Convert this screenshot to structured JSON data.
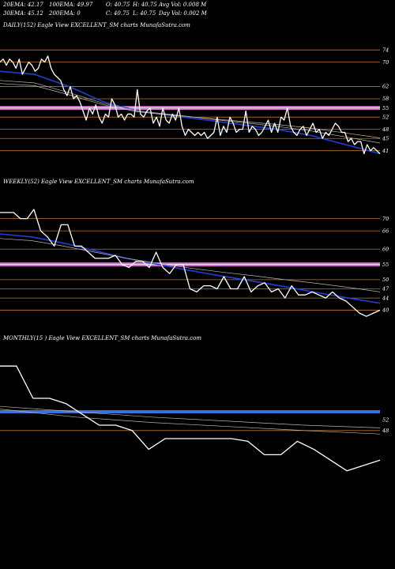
{
  "header": {
    "row1": [
      "20EMA: 42.17",
      "100EMA: 49.97",
      "O: 40.75",
      "H: 40.75",
      "Avg Vol: 0.008  M"
    ],
    "row2": [
      "30EMA: 45.12",
      "200EMA: 0",
      "C: 40.75",
      "L: 40.75",
      "Day Vol: 0.002  M"
    ]
  },
  "colors": {
    "background": "#000000",
    "price": "#ffffff",
    "ema_fast": "#1f3fd6",
    "ema_slow": "#bdb6a8",
    "level_line": "#b87333",
    "pink_band": "#d070d0",
    "blue_band": "#3a6fe0"
  },
  "chart_data": [
    {
      "type": "line",
      "title": "DAILY(152) Eagle  View  EXCELLENT_SM charts MunafaSutra.com",
      "ylim": [
        36,
        80
      ],
      "y_ticks": [
        74,
        70,
        62,
        58,
        55,
        52,
        48,
        45,
        41
      ],
      "level_lines": [
        74,
        70,
        62,
        58,
        52,
        48,
        45,
        41
      ],
      "pink_band": 55,
      "series": [
        {
          "role": "price",
          "values": [
            70,
            71,
            69,
            71,
            70,
            68,
            71,
            66,
            68,
            70,
            69,
            67,
            68,
            71,
            70,
            72,
            68,
            66,
            65,
            64,
            61,
            59,
            62,
            58,
            59,
            57,
            54,
            51,
            55,
            53,
            56,
            52,
            50,
            53,
            52,
            58,
            56,
            52,
            53,
            51,
            53,
            53,
            52,
            61,
            53,
            52,
            54,
            55,
            50,
            52,
            49,
            55,
            51,
            50,
            53,
            51,
            55,
            49,
            46,
            48,
            47,
            46,
            47,
            46,
            47,
            45,
            46,
            47,
            52,
            46,
            49,
            47,
            52,
            50,
            47,
            48,
            48,
            54,
            47,
            49,
            48,
            46,
            47,
            49,
            51,
            47,
            50,
            47,
            52,
            51,
            55,
            49,
            47,
            46,
            48,
            49,
            46,
            48,
            50,
            47,
            48,
            45,
            47,
            46,
            48,
            50,
            49,
            47,
            47,
            44,
            45,
            43,
            44,
            44,
            40,
            43,
            41,
            42,
            41,
            40
          ]
        },
        {
          "role": "ema_fast",
          "values": [
            67.0,
            66.0,
            62.0,
            57.0,
            54.0,
            52.5,
            51.0,
            49.5,
            48.0,
            46.0,
            43.0,
            40.0
          ]
        },
        {
          "role": "ema_slow",
          "values": [
            64.0,
            63.2,
            60.0,
            56.5,
            54.0,
            52.8,
            51.5,
            50.2,
            49.0,
            47.5,
            45.5,
            43.5
          ]
        },
        {
          "role": "ema_slow",
          "values": [
            63.0,
            62.3,
            59.3,
            56.0,
            53.7,
            52.6,
            51.6,
            50.6,
            49.6,
            48.4,
            46.8,
            45.2
          ]
        }
      ]
    },
    {
      "type": "line",
      "title": "WEEKLY(52) Eagle  View  EXCELLENT_SM charts MunafaSutra.com",
      "ylim": [
        36,
        80
      ],
      "y_ticks": [
        70,
        66,
        60,
        55,
        50,
        47,
        44,
        40
      ],
      "level_lines": [
        70,
        66,
        60,
        50,
        47,
        44,
        40
      ],
      "pink_band": 55,
      "series": [
        {
          "role": "price",
          "values": [
            72,
            72,
            72,
            70,
            70,
            73,
            66,
            64,
            61,
            68,
            68,
            61,
            61,
            59,
            57,
            57,
            57,
            58,
            55,
            54,
            56,
            56,
            54,
            59,
            54,
            52,
            55,
            55,
            47,
            46,
            48,
            48,
            47,
            51,
            47,
            47,
            51,
            46,
            48,
            49,
            46,
            47,
            44,
            48,
            45,
            45,
            46,
            45,
            44,
            46,
            44,
            43,
            41,
            39,
            38,
            39,
            40
          ]
        },
        {
          "role": "ema_fast",
          "values": [
            65.0,
            64.0,
            62.0,
            59.5,
            57.0,
            55.0,
            53.0,
            51.2,
            49.5,
            47.7,
            45.8,
            44.0,
            42.3
          ]
        },
        {
          "role": "ema_slow",
          "values": [
            63.5,
            62.8,
            61.0,
            59.0,
            57.0,
            55.3,
            53.8,
            52.5,
            51.3,
            50.0,
            48.8,
            47.5,
            46.0
          ]
        }
      ]
    },
    {
      "type": "line",
      "title": "MONTHLY(15                          ) Eagle  View  EXCELLENT_SM charts MunafaSutra.com",
      "ylim": [
        30,
        80
      ],
      "y_ticks": [
        52,
        48
      ],
      "level_lines": [
        48
      ],
      "blue_band": 55,
      "series": [
        {
          "role": "price",
          "values": [
            72,
            72,
            60,
            60,
            58,
            54,
            50,
            50,
            48,
            41,
            45,
            45,
            45,
            45,
            45,
            44,
            39,
            39,
            44,
            41,
            37,
            33,
            35,
            37
          ]
        },
        {
          "role": "ema_slow",
          "values": [
            56.0,
            53.0,
            51.0,
            49.5,
            48.0,
            46.7
          ]
        },
        {
          "role": "ema_slow",
          "values": [
            57.0,
            55.0,
            53.0,
            51.5,
            50.0,
            49.0
          ]
        }
      ]
    }
  ]
}
